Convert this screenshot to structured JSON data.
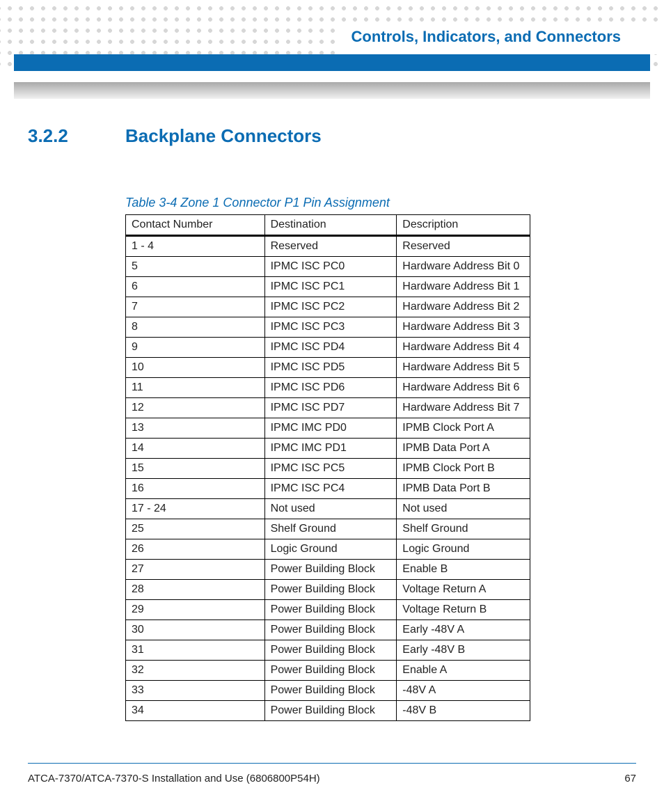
{
  "header": {
    "chapter_title": "Controls, Indicators, and Connectors",
    "colors": {
      "brand_blue": "#0b6cb3",
      "dot_grey": "#d7d7d7"
    }
  },
  "section": {
    "number": "3.2.2",
    "title": "Backplane Connectors"
  },
  "table": {
    "caption": "Table 3-4 Zone 1 Connector P1 Pin Assignment",
    "columns": [
      "Contact Number",
      "Destination",
      "Description"
    ],
    "rows": [
      [
        "1 - 4",
        "Reserved",
        "Reserved"
      ],
      [
        "5",
        "IPMC ISC PC0",
        "Hardware Address Bit 0"
      ],
      [
        "6",
        "IPMC ISC PC1",
        "Hardware Address Bit 1"
      ],
      [
        "7",
        "IPMC ISC PC2",
        "Hardware Address Bit 2"
      ],
      [
        "8",
        "IPMC ISC PC3",
        "Hardware Address Bit 3"
      ],
      [
        "9",
        "IPMC ISC PD4",
        "Hardware Address Bit 4"
      ],
      [
        "10",
        "IPMC ISC PD5",
        "Hardware Address Bit 5"
      ],
      [
        "11",
        "IPMC ISC PD6",
        "Hardware Address Bit 6"
      ],
      [
        "12",
        "IPMC ISC PD7",
        "Hardware Address Bit 7"
      ],
      [
        "13",
        "IPMC IMC PD0",
        "IPMB Clock Port A"
      ],
      [
        "14",
        "IPMC IMC PD1",
        "IPMB Data Port A"
      ],
      [
        "15",
        "IPMC ISC PC5",
        "IPMB Clock Port B"
      ],
      [
        "16",
        "IPMC ISC PC4",
        "IPMB Data Port B"
      ],
      [
        "17 - 24",
        "Not used",
        "Not used"
      ],
      [
        "25",
        "Shelf Ground",
        "Shelf Ground"
      ],
      [
        "26",
        "Logic Ground",
        "Logic Ground"
      ],
      [
        "27",
        "Power Building Block",
        "Enable B"
      ],
      [
        "28",
        "Power Building Block",
        "Voltage Return A"
      ],
      [
        "29",
        "Power Building Block",
        "Voltage Return B"
      ],
      [
        "30",
        "Power Building Block",
        "Early -48V A"
      ],
      [
        "31",
        "Power Building Block",
        "Early -48V B"
      ],
      [
        "32",
        "Power Building Block",
        "Enable A"
      ],
      [
        "33",
        "Power Building Block",
        "-48V A"
      ],
      [
        "34",
        "Power Building Block",
        "-48V B"
      ]
    ]
  },
  "footer": {
    "doc_title": "ATCA-7370/ATCA-7370-S Installation and Use (6806800P54H)",
    "page_number": "67"
  }
}
